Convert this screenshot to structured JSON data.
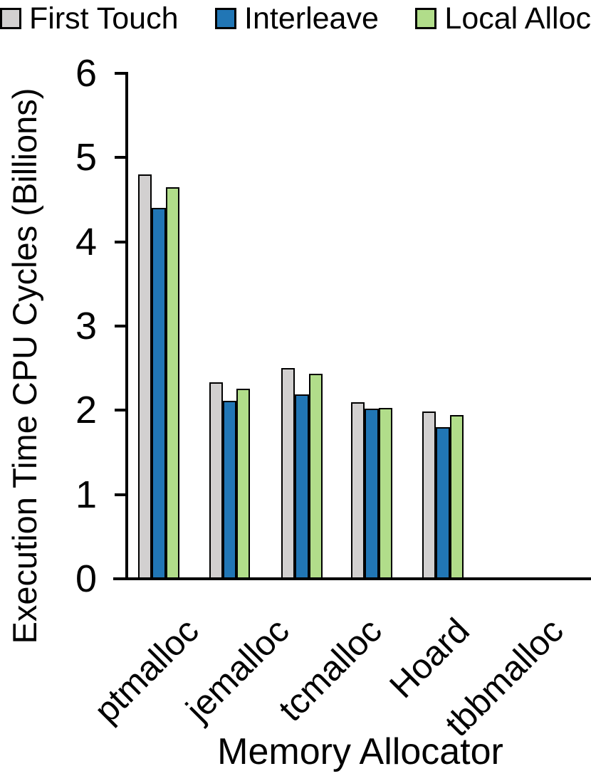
{
  "chart_data": {
    "type": "bar",
    "title": "",
    "xlabel": "Memory Allocator",
    "ylabel": "Execution Time CPU Cycles (Billions)",
    "categories": [
      "ptmalloc",
      "jemalloc",
      "tcmalloc",
      "Hoard",
      "tbbmalloc"
    ],
    "series": [
      {
        "name": "First Touch",
        "color": "#d2d0d0",
        "values": [
          4.8,
          2.33,
          2.5,
          2.1,
          1.99
        ]
      },
      {
        "name": "Interleave",
        "color": "#2176b5",
        "values": [
          4.4,
          2.11,
          2.19,
          2.02,
          1.8
        ]
      },
      {
        "name": "Local Alloc",
        "color": "#b1dd8a",
        "values": [
          4.65,
          2.26,
          2.43,
          2.03,
          1.94
        ]
      }
    ],
    "ylim": [
      0,
      6
    ],
    "yticks": [
      0,
      1,
      2,
      3,
      4,
      5,
      6
    ],
    "grid": false,
    "legend_position": "top",
    "bar_outline_color": "#000000",
    "axis_color": "#000000"
  }
}
